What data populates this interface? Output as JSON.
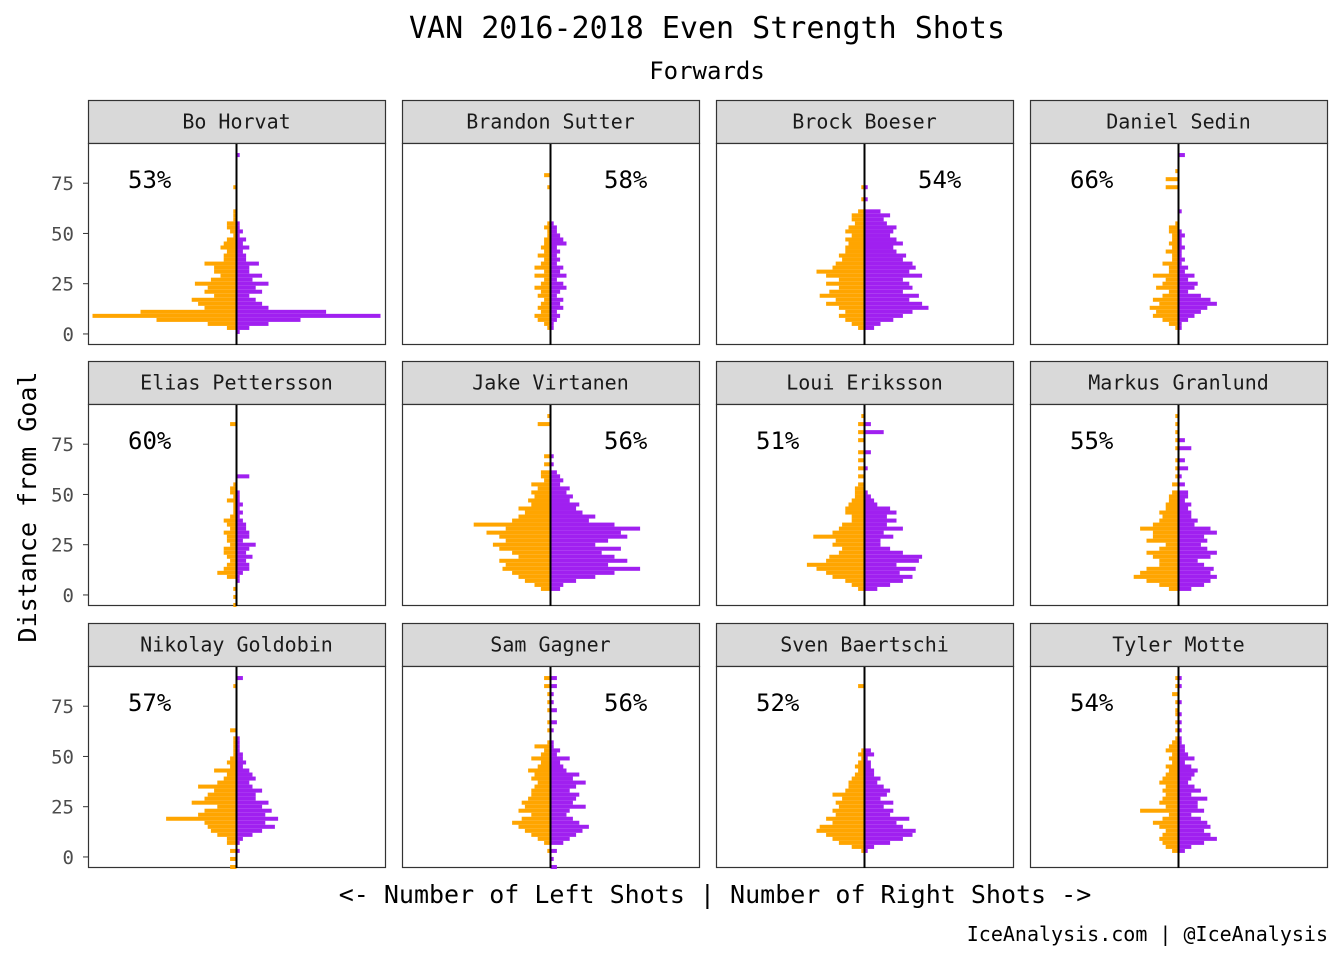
{
  "chart_data": {
    "type": "bar",
    "orientation": "horizontal-diverging",
    "title": "VAN 2016-2018 Even Strength Shots",
    "subtitle": "Forwards",
    "xlabel": "<- Number of Left Shots | Number of Right Shots ->",
    "ylabel": "Distance from Goal",
    "caption": "IceAnalysis.com | @IceAnalysis",
    "ylim": [
      -5,
      95
    ],
    "y_ticks": [
      "0",
      "25",
      "50",
      "75"
    ],
    "y_tick_values": [
      0,
      25,
      50,
      75
    ],
    "x_max": 45,
    "bin_size": 2,
    "colors": {
      "left": "#FFA500",
      "right": "#A020F0"
    },
    "grid": false,
    "panels": [
      {
        "name": "Bo Horvat",
        "pct": "53%",
        "pct_side": "left",
        "bins": [
          0,
          2,
          4,
          6,
          8,
          10,
          12,
          14,
          16,
          18,
          20,
          22,
          24,
          26,
          28,
          30,
          32,
          34,
          36,
          38,
          40,
          42,
          44,
          46,
          48,
          50,
          52,
          54,
          56,
          58,
          60,
          72,
          88
        ],
        "left": [
          0,
          3,
          9,
          25,
          45,
          30,
          10,
          12,
          14,
          7,
          10,
          9,
          13,
          8,
          5,
          7,
          7,
          10,
          4,
          4,
          3,
          5,
          4,
          3,
          1,
          2,
          3,
          3,
          1,
          1,
          1,
          1,
          0
        ],
        "right": [
          1,
          4,
          10,
          20,
          45,
          28,
          10,
          8,
          6,
          4,
          8,
          6,
          10,
          5,
          8,
          4,
          4,
          7,
          3,
          3,
          2,
          4,
          2,
          3,
          1,
          2,
          1,
          1,
          0,
          0,
          0,
          0,
          1
        ]
      },
      {
        "name": "Brandon Sutter",
        "pct": "58%",
        "pct_side": "right",
        "bins": [
          0,
          2,
          4,
          6,
          8,
          10,
          12,
          14,
          16,
          18,
          20,
          22,
          24,
          26,
          28,
          30,
          32,
          34,
          36,
          38,
          40,
          42,
          44,
          46,
          48,
          50,
          52,
          54,
          72,
          78
        ],
        "left": [
          0,
          1,
          2,
          4,
          5,
          3,
          4,
          3,
          2,
          4,
          3,
          5,
          3,
          2,
          5,
          2,
          5,
          3,
          2,
          4,
          2,
          3,
          2,
          2,
          1,
          1,
          2,
          1,
          1,
          2
        ],
        "right": [
          0,
          1,
          1,
          2,
          3,
          2,
          4,
          3,
          4,
          2,
          3,
          5,
          4,
          2,
          5,
          3,
          4,
          2,
          3,
          2,
          3,
          2,
          5,
          4,
          3,
          2,
          2,
          1,
          0,
          0
        ]
      },
      {
        "name": "Brock Boeser",
        "pct": "54%",
        "pct_side": "right",
        "bins": [
          0,
          2,
          4,
          6,
          8,
          10,
          12,
          14,
          16,
          18,
          20,
          22,
          24,
          26,
          28,
          30,
          32,
          34,
          36,
          38,
          40,
          42,
          44,
          46,
          48,
          50,
          52,
          54,
          56,
          58,
          60,
          66,
          72
        ],
        "left": [
          0,
          2,
          4,
          6,
          8,
          6,
          8,
          12,
          9,
          14,
          11,
          8,
          12,
          8,
          12,
          15,
          10,
          9,
          7,
          8,
          6,
          6,
          5,
          6,
          4,
          6,
          5,
          3,
          4,
          4,
          2,
          1,
          1
        ],
        "right": [
          0,
          3,
          5,
          9,
          12,
          15,
          20,
          18,
          14,
          17,
          12,
          15,
          14,
          12,
          18,
          14,
          16,
          15,
          12,
          13,
          10,
          9,
          12,
          10,
          8,
          9,
          10,
          7,
          6,
          8,
          5,
          1,
          1
        ]
      },
      {
        "name": "Daniel Sedin",
        "pct": "66%",
        "pct_side": "left",
        "bins": [
          0,
          2,
          4,
          6,
          8,
          10,
          12,
          14,
          16,
          18,
          20,
          22,
          24,
          26,
          28,
          30,
          32,
          34,
          36,
          38,
          40,
          42,
          44,
          46,
          48,
          50,
          52,
          54,
          60,
          72,
          76,
          80,
          88
        ],
        "left": [
          0,
          1,
          3,
          5,
          8,
          7,
          9,
          6,
          8,
          5,
          3,
          7,
          5,
          4,
          8,
          3,
          3,
          5,
          2,
          2,
          4,
          2,
          3,
          2,
          2,
          3,
          3,
          1,
          0,
          4,
          4,
          1,
          0
        ],
        "right": [
          0,
          1,
          1,
          3,
          5,
          7,
          9,
          12,
          10,
          7,
          3,
          5,
          6,
          3,
          5,
          2,
          3,
          1,
          2,
          1,
          1,
          2,
          1,
          1,
          2,
          1,
          0,
          0,
          1,
          0,
          0,
          0,
          2
        ]
      },
      {
        "name": "Elias Pettersson",
        "pct": "60%",
        "pct_side": "left",
        "bins": [
          -6,
          -2,
          2,
          6,
          8,
          10,
          12,
          14,
          16,
          18,
          20,
          22,
          24,
          26,
          28,
          30,
          32,
          34,
          36,
          38,
          40,
          42,
          44,
          46,
          48,
          50,
          52,
          54,
          58,
          84
        ],
        "left": [
          1,
          1,
          1,
          0,
          3,
          6,
          4,
          3,
          2,
          3,
          4,
          4,
          2,
          3,
          3,
          4,
          2,
          3,
          4,
          2,
          1,
          1,
          1,
          3,
          1,
          2,
          2,
          1,
          0,
          2
        ],
        "right": [
          0,
          0,
          0,
          1,
          1,
          2,
          4,
          4,
          3,
          5,
          3,
          4,
          6,
          2,
          4,
          4,
          3,
          3,
          2,
          1,
          2,
          1,
          2,
          1,
          1,
          1,
          0,
          0,
          4,
          0
        ]
      },
      {
        "name": "Jake Virtanen",
        "pct": "56%",
        "pct_side": "right",
        "bins": [
          0,
          2,
          4,
          6,
          8,
          10,
          12,
          14,
          16,
          18,
          20,
          22,
          24,
          26,
          28,
          30,
          32,
          34,
          36,
          38,
          40,
          42,
          44,
          46,
          48,
          50,
          52,
          54,
          56,
          58,
          60,
          64,
          68,
          84,
          88
        ],
        "left": [
          0,
          3,
          5,
          8,
          10,
          12,
          15,
          14,
          16,
          10,
          12,
          16,
          18,
          14,
          16,
          20,
          14,
          24,
          12,
          10,
          8,
          10,
          6,
          7,
          5,
          6,
          4,
          6,
          2,
          3,
          3,
          2,
          2,
          4,
          1
        ],
        "right": [
          0,
          3,
          4,
          8,
          14,
          20,
          28,
          18,
          24,
          20,
          16,
          22,
          14,
          18,
          24,
          22,
          28,
          20,
          12,
          14,
          10,
          8,
          9,
          6,
          7,
          5,
          6,
          3,
          4,
          3,
          2,
          1,
          1,
          0,
          0
        ]
      },
      {
        "name": "Loui Eriksson",
        "pct": "51%",
        "pct_side": "left",
        "bins": [
          0,
          2,
          4,
          6,
          8,
          10,
          12,
          14,
          16,
          18,
          20,
          22,
          24,
          26,
          28,
          30,
          32,
          34,
          36,
          38,
          40,
          42,
          44,
          46,
          48,
          50,
          52,
          54,
          58,
          62,
          66,
          70,
          76,
          80,
          84,
          88
        ],
        "left": [
          0,
          2,
          4,
          6,
          10,
          12,
          15,
          18,
          12,
          11,
          8,
          7,
          10,
          9,
          16,
          10,
          8,
          7,
          4,
          4,
          6,
          6,
          5,
          4,
          3,
          3,
          3,
          2,
          2,
          2,
          2,
          2,
          2,
          2,
          2,
          1
        ],
        "right": [
          0,
          4,
          8,
          12,
          15,
          11,
          16,
          10,
          17,
          18,
          12,
          8,
          5,
          5,
          9,
          6,
          12,
          7,
          10,
          7,
          10,
          8,
          4,
          3,
          2,
          1,
          0,
          0,
          0,
          1,
          0,
          2,
          0,
          6,
          2,
          0
        ]
      },
      {
        "name": "Markus Granlund",
        "pct": "55%",
        "pct_side": "left",
        "bins": [
          0,
          2,
          4,
          6,
          8,
          10,
          12,
          14,
          16,
          18,
          20,
          22,
          24,
          26,
          28,
          30,
          32,
          34,
          36,
          38,
          40,
          42,
          44,
          46,
          48,
          50,
          54,
          58,
          62,
          66,
          72,
          76,
          80,
          84,
          88
        ],
        "left": [
          0,
          3,
          6,
          10,
          14,
          12,
          10,
          6,
          6,
          8,
          10,
          6,
          4,
          10,
          8,
          8,
          12,
          8,
          6,
          5,
          6,
          4,
          4,
          3,
          3,
          2,
          2,
          1,
          1,
          1,
          1,
          1,
          1,
          1,
          1
        ],
        "right": [
          0,
          4,
          8,
          10,
          12,
          10,
          11,
          8,
          6,
          10,
          12,
          9,
          7,
          9,
          8,
          12,
          10,
          5,
          6,
          4,
          4,
          3,
          4,
          2,
          3,
          3,
          2,
          1,
          3,
          2,
          4,
          2,
          0,
          0,
          0
        ]
      },
      {
        "name": "Nikolay Goldobin",
        "pct": "57%",
        "pct_side": "left",
        "bins": [
          -6,
          -2,
          2,
          6,
          8,
          10,
          12,
          14,
          16,
          18,
          20,
          22,
          24,
          26,
          28,
          30,
          32,
          34,
          36,
          38,
          40,
          42,
          44,
          46,
          48,
          50,
          52,
          54,
          56,
          58,
          62,
          84,
          88
        ],
        "left": [
          2,
          2,
          2,
          3,
          3,
          6,
          8,
          9,
          10,
          22,
          12,
          10,
          6,
          14,
          10,
          9,
          7,
          12,
          6,
          4,
          3,
          7,
          2,
          3,
          2,
          1,
          1,
          1,
          1,
          1,
          2,
          1,
          0
        ],
        "right": [
          0,
          0,
          1,
          1,
          2,
          5,
          8,
          12,
          9,
          13,
          9,
          11,
          8,
          10,
          6,
          6,
          8,
          5,
          4,
          6,
          5,
          4,
          2,
          3,
          2,
          2,
          1,
          1,
          1,
          1,
          0,
          0,
          2
        ]
      },
      {
        "name": "Sam Gagner",
        "pct": "56%",
        "pct_side": "right",
        "bins": [
          -6,
          -2,
          2,
          6,
          8,
          10,
          12,
          14,
          16,
          18,
          20,
          22,
          24,
          26,
          28,
          30,
          32,
          34,
          36,
          38,
          40,
          42,
          44,
          46,
          48,
          50,
          52,
          54,
          56,
          62,
          66,
          72,
          76,
          80,
          84,
          88
        ],
        "left": [
          0,
          0,
          1,
          2,
          4,
          6,
          8,
          10,
          12,
          9,
          6,
          10,
          8,
          9,
          7,
          6,
          6,
          5,
          4,
          6,
          5,
          7,
          4,
          3,
          6,
          3,
          2,
          5,
          1,
          1,
          1,
          1,
          1,
          1,
          2,
          2
        ],
        "right": [
          2,
          1,
          2,
          4,
          6,
          8,
          10,
          12,
          9,
          7,
          5,
          6,
          11,
          7,
          8,
          9,
          6,
          8,
          11,
          7,
          9,
          5,
          4,
          3,
          6,
          2,
          3,
          1,
          1,
          1,
          2,
          2,
          1,
          1,
          2,
          2
        ]
      },
      {
        "name": "Sven Baertschi",
        "pct": "52%",
        "pct_side": "left",
        "bins": [
          0,
          2,
          4,
          6,
          8,
          10,
          12,
          14,
          16,
          18,
          20,
          22,
          24,
          26,
          28,
          30,
          32,
          34,
          36,
          38,
          40,
          42,
          44,
          46,
          48,
          50,
          52,
          84
        ],
        "left": [
          0,
          1,
          4,
          8,
          10,
          12,
          15,
          14,
          10,
          12,
          9,
          10,
          8,
          9,
          7,
          10,
          6,
          5,
          5,
          4,
          3,
          2,
          3,
          2,
          1,
          2,
          1,
          2
        ],
        "right": [
          0,
          1,
          3,
          8,
          12,
          15,
          16,
          12,
          10,
          14,
          8,
          9,
          6,
          9,
          5,
          7,
          8,
          6,
          4,
          5,
          3,
          3,
          2,
          2,
          1,
          3,
          2,
          0
        ]
      },
      {
        "name": "Tyler Motte",
        "pct": "54%",
        "pct_side": "left",
        "bins": [
          0,
          2,
          4,
          6,
          8,
          10,
          12,
          14,
          16,
          18,
          20,
          22,
          24,
          26,
          28,
          30,
          32,
          34,
          36,
          38,
          40,
          42,
          44,
          46,
          48,
          50,
          52,
          54,
          56,
          58,
          62,
          66,
          70,
          72,
          76,
          80,
          84,
          88
        ],
        "left": [
          0,
          2,
          4,
          5,
          6,
          5,
          4,
          6,
          8,
          5,
          3,
          12,
          4,
          6,
          5,
          4,
          5,
          4,
          6,
          5,
          4,
          3,
          4,
          2,
          3,
          2,
          4,
          3,
          2,
          1,
          1,
          1,
          1,
          1,
          1,
          2,
          1,
          1
        ],
        "right": [
          0,
          2,
          4,
          8,
          12,
          10,
          8,
          10,
          9,
          7,
          4,
          8,
          6,
          6,
          9,
          4,
          7,
          5,
          3,
          4,
          5,
          6,
          4,
          2,
          5,
          3,
          2,
          2,
          1,
          1,
          1,
          1,
          1,
          0,
          1,
          0,
          1,
          1
        ]
      }
    ]
  }
}
